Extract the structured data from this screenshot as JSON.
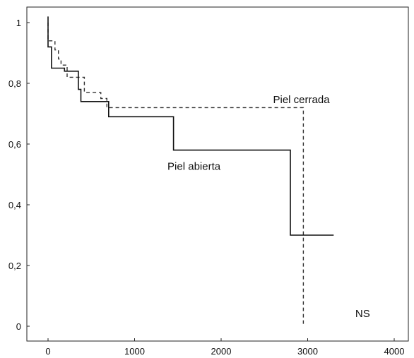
{
  "chart_data": {
    "type": "line",
    "title": "",
    "xlabel": "",
    "ylabel": "",
    "xlim": [
      0,
      4000
    ],
    "ylim": [
      0,
      1
    ],
    "x_ticks": [
      0,
      1000,
      2000,
      3000,
      4000
    ],
    "x_tick_labels": [
      "0",
      "1000",
      "2000",
      "3000",
      "4000"
    ],
    "y_ticks": [
      0,
      0.2,
      0.4,
      0.6,
      0.8,
      1
    ],
    "y_tick_labels": [
      "0",
      "0,2",
      "0,4",
      "0,6",
      "0,8",
      "1"
    ],
    "grid": false,
    "legend": "none",
    "series": [
      {
        "name": "Piel cerrada",
        "style": "dashed",
        "color": "#333333",
        "x": [
          0,
          0,
          80,
          80,
          120,
          120,
          150,
          150,
          220,
          220,
          420,
          420,
          610,
          610,
          680,
          680,
          2950,
          2950
        ],
        "y": [
          1.0,
          0.94,
          0.94,
          0.91,
          0.91,
          0.88,
          0.88,
          0.86,
          0.86,
          0.82,
          0.82,
          0.77,
          0.77,
          0.75,
          0.75,
          0.72,
          0.72,
          0.0
        ]
      },
      {
        "name": "Piel abierta",
        "style": "solid",
        "color": "#111111",
        "x": [
          0,
          0,
          40,
          40,
          190,
          190,
          350,
          350,
          380,
          380,
          700,
          700,
          1450,
          1450,
          2800,
          2800,
          3300
        ],
        "y": [
          1.02,
          0.92,
          0.92,
          0.85,
          0.85,
          0.84,
          0.84,
          0.78,
          0.78,
          0.74,
          0.74,
          0.69,
          0.69,
          0.58,
          0.58,
          0.3,
          0.3
        ]
      }
    ],
    "annotations": [
      {
        "text": "Piel cerrada",
        "x": 2600,
        "y": 0.735
      },
      {
        "text": "Piel abierta",
        "x": 1380,
        "y": 0.515
      },
      {
        "text": "NS",
        "x": 3550,
        "y": 0.03
      }
    ]
  }
}
